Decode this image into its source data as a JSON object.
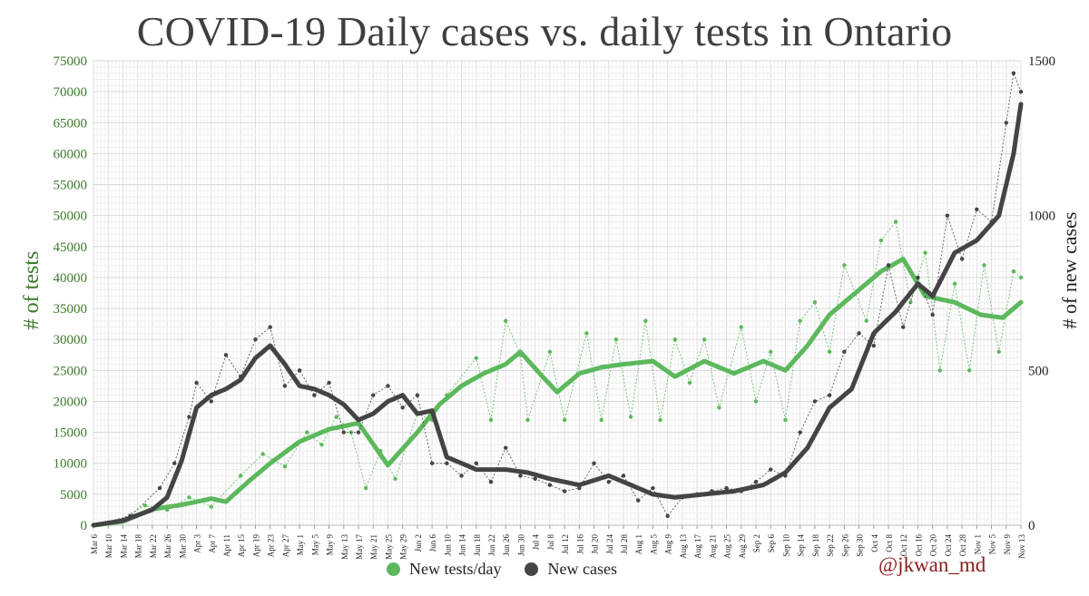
{
  "chart_data": {
    "type": "line",
    "title": "COVID-19 Daily cases vs. daily tests in Ontario",
    "ylabel_left": "# of tests",
    "ylabel_right": "# of new cases",
    "ylim_left": [
      0,
      75000
    ],
    "ylim_right": [
      0,
      1500
    ],
    "yticks_left": [
      "0",
      "5000",
      "10000",
      "15000",
      "20000",
      "25000",
      "30000",
      "35000",
      "40000",
      "45000",
      "50000",
      "55000",
      "60000",
      "65000",
      "70000",
      "75000"
    ],
    "yticks_right": [
      "0",
      "500",
      "1000",
      "1500"
    ],
    "x_start": "Mar 6",
    "x_end": "Nov 13",
    "x_tick_every_days": 4,
    "xticks": [
      "Mar 6",
      "Mar 10",
      "Mar 14",
      "Mar 18",
      "Mar 22",
      "Mar 26",
      "Mar 30",
      "Apr 3",
      "Apr 7",
      "Apr 11",
      "Apr 15",
      "Apr 19",
      "Apr 23",
      "Apr 27",
      "May 1",
      "May 5",
      "May 9",
      "May 13",
      "May 17",
      "May 21",
      "May 25",
      "May 29",
      "Jun 2",
      "Jun 6",
      "Jun 10",
      "Jun 14",
      "Jun 18",
      "Jun 22",
      "Jun 26",
      "Jun 30",
      "Jul 4",
      "Jul 8",
      "Jul 12",
      "Jul 16",
      "Jul 20",
      "Jul 24",
      "Jul 28",
      "Aug 1",
      "Aug 5",
      "Aug 9",
      "Aug 13",
      "Aug 17",
      "Aug 21",
      "Aug 25",
      "Aug 29",
      "Sep 2",
      "Sep 6",
      "Sep 10",
      "Sep 14",
      "Sep 18",
      "Sep 22",
      "Sep 26",
      "Sep 30",
      "Oct 4",
      "Oct 8",
      "Oct 12",
      "Oct 16",
      "Oct 20",
      "Oct 24",
      "Oct 28",
      "Nov 1",
      "Nov 5",
      "Nov 9",
      "Nov 13"
    ],
    "grid": true,
    "legend_position": "bottom-center",
    "series": [
      {
        "name": "New tests/day",
        "axis": "left",
        "color": "#5cb85c",
        "smoothed_anchors": [
          [
            "Mar 6",
            0
          ],
          [
            "Mar 14",
            600
          ],
          [
            "Mar 22",
            2600
          ],
          [
            "Mar 30",
            3300
          ],
          [
            "Apr 7",
            4300
          ],
          [
            "Apr 11",
            3800
          ],
          [
            "Apr 17",
            7000
          ],
          [
            "Apr 23",
            10000
          ],
          [
            "May 1",
            13500
          ],
          [
            "May 9",
            15500
          ],
          [
            "May 17",
            16500
          ],
          [
            "May 25",
            9700
          ],
          [
            "Jun 2",
            15000
          ],
          [
            "Jun 8",
            19500
          ],
          [
            "Jun 14",
            22500
          ],
          [
            "Jun 20",
            24500
          ],
          [
            "Jun 26",
            26000
          ],
          [
            "Jun 30",
            28000
          ],
          [
            "Jul 6",
            24000
          ],
          [
            "Jul 10",
            21500
          ],
          [
            "Jul 16",
            24500
          ],
          [
            "Jul 22",
            25500
          ],
          [
            "Jul 28",
            26000
          ],
          [
            "Aug 5",
            26500
          ],
          [
            "Aug 11",
            24000
          ],
          [
            "Aug 19",
            26500
          ],
          [
            "Aug 27",
            24500
          ],
          [
            "Sep 4",
            26500
          ],
          [
            "Sep 10",
            25000
          ],
          [
            "Sep 16",
            29000
          ],
          [
            "Sep 22",
            34000
          ],
          [
            "Sep 30",
            38000
          ],
          [
            "Oct 6",
            41000
          ],
          [
            "Oct 12",
            43000
          ],
          [
            "Oct 18",
            37000
          ],
          [
            "Oct 26",
            36000
          ],
          [
            "Nov 2",
            34000
          ],
          [
            "Nov 8",
            33500
          ],
          [
            "Nov 13",
            36000
          ]
        ],
        "daily_anchors": [
          [
            "Mar 6",
            0
          ],
          [
            "Mar 12",
            500
          ],
          [
            "Mar 20",
            3200
          ],
          [
            "Mar 26",
            2500
          ],
          [
            "Apr 1",
            4500
          ],
          [
            "Apr 7",
            3000
          ],
          [
            "Apr 15",
            8000
          ],
          [
            "Apr 21",
            11500
          ],
          [
            "Apr 27",
            9500
          ],
          [
            "May 3",
            15000
          ],
          [
            "May 7",
            13000
          ],
          [
            "May 11",
            17500
          ],
          [
            "May 15",
            15000
          ],
          [
            "May 19",
            6000
          ],
          [
            "May 23",
            12000
          ],
          [
            "May 27",
            7500
          ],
          [
            "Jun 2",
            18000
          ],
          [
            "Jun 6",
            17000
          ],
          [
            "Jun 10",
            21000
          ],
          [
            "Jun 18",
            27000
          ],
          [
            "Jun 22",
            17000
          ],
          [
            "Jun 26",
            33000
          ],
          [
            "Jun 30",
            27500
          ],
          [
            "Jul 2",
            17000
          ],
          [
            "Jul 8",
            28000
          ],
          [
            "Jul 12",
            17000
          ],
          [
            "Jul 18",
            31000
          ],
          [
            "Jul 22",
            17000
          ],
          [
            "Jul 26",
            30000
          ],
          [
            "Jul 30",
            17500
          ],
          [
            "Aug 3",
            33000
          ],
          [
            "Aug 7",
            17000
          ],
          [
            "Aug 11",
            30000
          ],
          [
            "Aug 15",
            23000
          ],
          [
            "Aug 19",
            30000
          ],
          [
            "Aug 23",
            19000
          ],
          [
            "Aug 29",
            32000
          ],
          [
            "Sep 2",
            20000
          ],
          [
            "Sep 6",
            28000
          ],
          [
            "Sep 10",
            17000
          ],
          [
            "Sep 14",
            33000
          ],
          [
            "Sep 18",
            36000
          ],
          [
            "Sep 22",
            28000
          ],
          [
            "Sep 26",
            42000
          ],
          [
            "Oct 2",
            33000
          ],
          [
            "Oct 6",
            46000
          ],
          [
            "Oct 10",
            49000
          ],
          [
            "Oct 14",
            36000
          ],
          [
            "Oct 18",
            44000
          ],
          [
            "Oct 22",
            25000
          ],
          [
            "Oct 26",
            39000
          ],
          [
            "Oct 30",
            25000
          ],
          [
            "Nov 3",
            42000
          ],
          [
            "Nov 7",
            28000
          ],
          [
            "Nov 11",
            41000
          ],
          [
            "Nov 13",
            40000
          ]
        ]
      },
      {
        "name": "New cases",
        "axis": "right",
        "color": "#444444",
        "smoothed_anchors": [
          [
            "Mar 6",
            0
          ],
          [
            "Mar 14",
            15
          ],
          [
            "Mar 22",
            50
          ],
          [
            "Mar 26",
            90
          ],
          [
            "Mar 30",
            210
          ],
          [
            "Apr 3",
            380
          ],
          [
            "Apr 7",
            420
          ],
          [
            "Apr 11",
            440
          ],
          [
            "Apr 15",
            470
          ],
          [
            "Apr 19",
            540
          ],
          [
            "Apr 23",
            580
          ],
          [
            "Apr 27",
            520
          ],
          [
            "May 1",
            450
          ],
          [
            "May 5",
            440
          ],
          [
            "May 9",
            420
          ],
          [
            "May 13",
            390
          ],
          [
            "May 17",
            340
          ],
          [
            "May 21",
            360
          ],
          [
            "May 25",
            400
          ],
          [
            "May 29",
            420
          ],
          [
            "Jun 2",
            360
          ],
          [
            "Jun 6",
            370
          ],
          [
            "Jun 10",
            220
          ],
          [
            "Jun 18",
            180
          ],
          [
            "Jun 26",
            180
          ],
          [
            "Jul 2",
            170
          ],
          [
            "Jul 8",
            150
          ],
          [
            "Jul 16",
            130
          ],
          [
            "Jul 24",
            160
          ],
          [
            "Jul 30",
            130
          ],
          [
            "Aug 5",
            100
          ],
          [
            "Aug 11",
            90
          ],
          [
            "Aug 19",
            100
          ],
          [
            "Aug 27",
            110
          ],
          [
            "Sep 4",
            130
          ],
          [
            "Sep 10",
            170
          ],
          [
            "Sep 16",
            250
          ],
          [
            "Sep 22",
            380
          ],
          [
            "Sep 28",
            440
          ],
          [
            "Oct 4",
            620
          ],
          [
            "Oct 10",
            690
          ],
          [
            "Oct 16",
            780
          ],
          [
            "Oct 20",
            740
          ],
          [
            "Oct 26",
            880
          ],
          [
            "Nov 1",
            920
          ],
          [
            "Nov 7",
            1000
          ],
          [
            "Nov 11",
            1200
          ],
          [
            "Nov 13",
            1360
          ]
        ],
        "daily_anchors": [
          [
            "Mar 6",
            0
          ],
          [
            "Mar 16",
            30
          ],
          [
            "Mar 24",
            120
          ],
          [
            "Mar 28",
            200
          ],
          [
            "Apr 1",
            350
          ],
          [
            "Apr 3",
            460
          ],
          [
            "Apr 7",
            400
          ],
          [
            "Apr 11",
            550
          ],
          [
            "Apr 15",
            480
          ],
          [
            "Apr 19",
            600
          ],
          [
            "Apr 23",
            640
          ],
          [
            "Apr 27",
            450
          ],
          [
            "May 1",
            500
          ],
          [
            "May 5",
            420
          ],
          [
            "May 9",
            460
          ],
          [
            "May 13",
            300
          ],
          [
            "May 17",
            300
          ],
          [
            "May 21",
            420
          ],
          [
            "May 25",
            450
          ],
          [
            "May 29",
            380
          ],
          [
            "Jun 2",
            420
          ],
          [
            "Jun 6",
            200
          ],
          [
            "Jun 10",
            200
          ],
          [
            "Jun 14",
            160
          ],
          [
            "Jun 18",
            200
          ],
          [
            "Jun 22",
            140
          ],
          [
            "Jun 26",
            250
          ],
          [
            "Jun 30",
            160
          ],
          [
            "Jul 4",
            150
          ],
          [
            "Jul 8",
            130
          ],
          [
            "Jul 12",
            110
          ],
          [
            "Jul 16",
            120
          ],
          [
            "Jul 20",
            200
          ],
          [
            "Jul 24",
            140
          ],
          [
            "Jul 28",
            160
          ],
          [
            "Aug 1",
            80
          ],
          [
            "Aug 5",
            120
          ],
          [
            "Aug 9",
            30
          ],
          [
            "Aug 13",
            90
          ],
          [
            "Aug 17",
            100
          ],
          [
            "Aug 21",
            110
          ],
          [
            "Aug 25",
            120
          ],
          [
            "Aug 29",
            110
          ],
          [
            "Sep 2",
            140
          ],
          [
            "Sep 6",
            180
          ],
          [
            "Sep 10",
            160
          ],
          [
            "Sep 14",
            300
          ],
          [
            "Sep 18",
            400
          ],
          [
            "Sep 22",
            420
          ],
          [
            "Sep 26",
            560
          ],
          [
            "Sep 30",
            620
          ],
          [
            "Oct 4",
            580
          ],
          [
            "Oct 8",
            840
          ],
          [
            "Oct 12",
            640
          ],
          [
            "Oct 16",
            800
          ],
          [
            "Oct 20",
            680
          ],
          [
            "Oct 24",
            1000
          ],
          [
            "Oct 28",
            860
          ],
          [
            "Nov 1",
            1020
          ],
          [
            "Nov 5",
            980
          ],
          [
            "Nov 9",
            1300
          ],
          [
            "Nov 11",
            1460
          ],
          [
            "Nov 13",
            1400
          ]
        ]
      }
    ]
  },
  "legend": {
    "tests_label": "New tests/day",
    "cases_label": "New cases"
  },
  "credit": "@jkwan_md"
}
